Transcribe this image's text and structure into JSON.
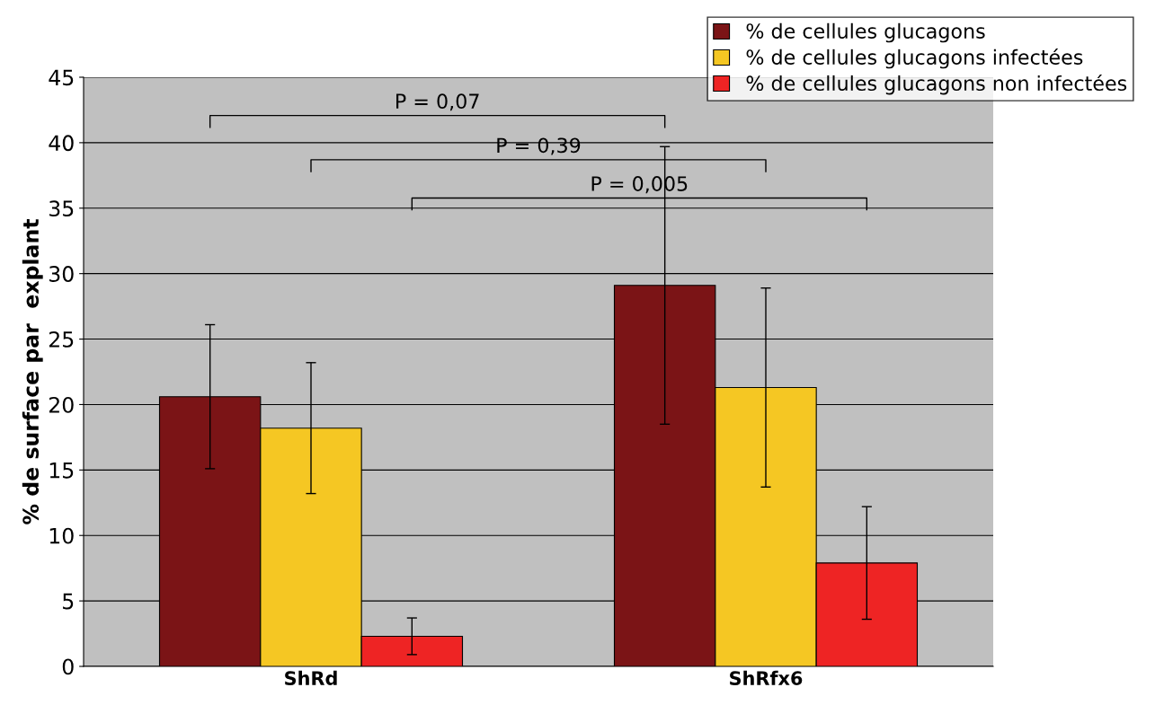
{
  "chart_data": {
    "type": "bar",
    "ylabel": "% de surface par  explant",
    "categories": [
      "ShRd",
      "ShRfx6"
    ],
    "series": [
      {
        "name": "% de cellules glucagons",
        "color": "#7b1416",
        "values": [
          20.6,
          29.1
        ],
        "errors": [
          5.5,
          10.6
        ]
      },
      {
        "name": "% de cellules glucagons infectées",
        "color": "#f5c723",
        "values": [
          18.2,
          21.3
        ],
        "errors": [
          5.0,
          7.6
        ]
      },
      {
        "name": "% de cellules glucagons non infectées",
        "color": "#ee2424",
        "values": [
          2.3,
          7.9
        ],
        "errors": [
          1.4,
          4.3
        ]
      }
    ],
    "ylim": [
      0,
      45
    ],
    "yticks": [
      0,
      5,
      10,
      15,
      20,
      25,
      30,
      35,
      40,
      45
    ],
    "grid": "y",
    "legend": "top right",
    "annotations": [
      "P = 0,07",
      "P = 0,39",
      "P = 0,005"
    ]
  }
}
